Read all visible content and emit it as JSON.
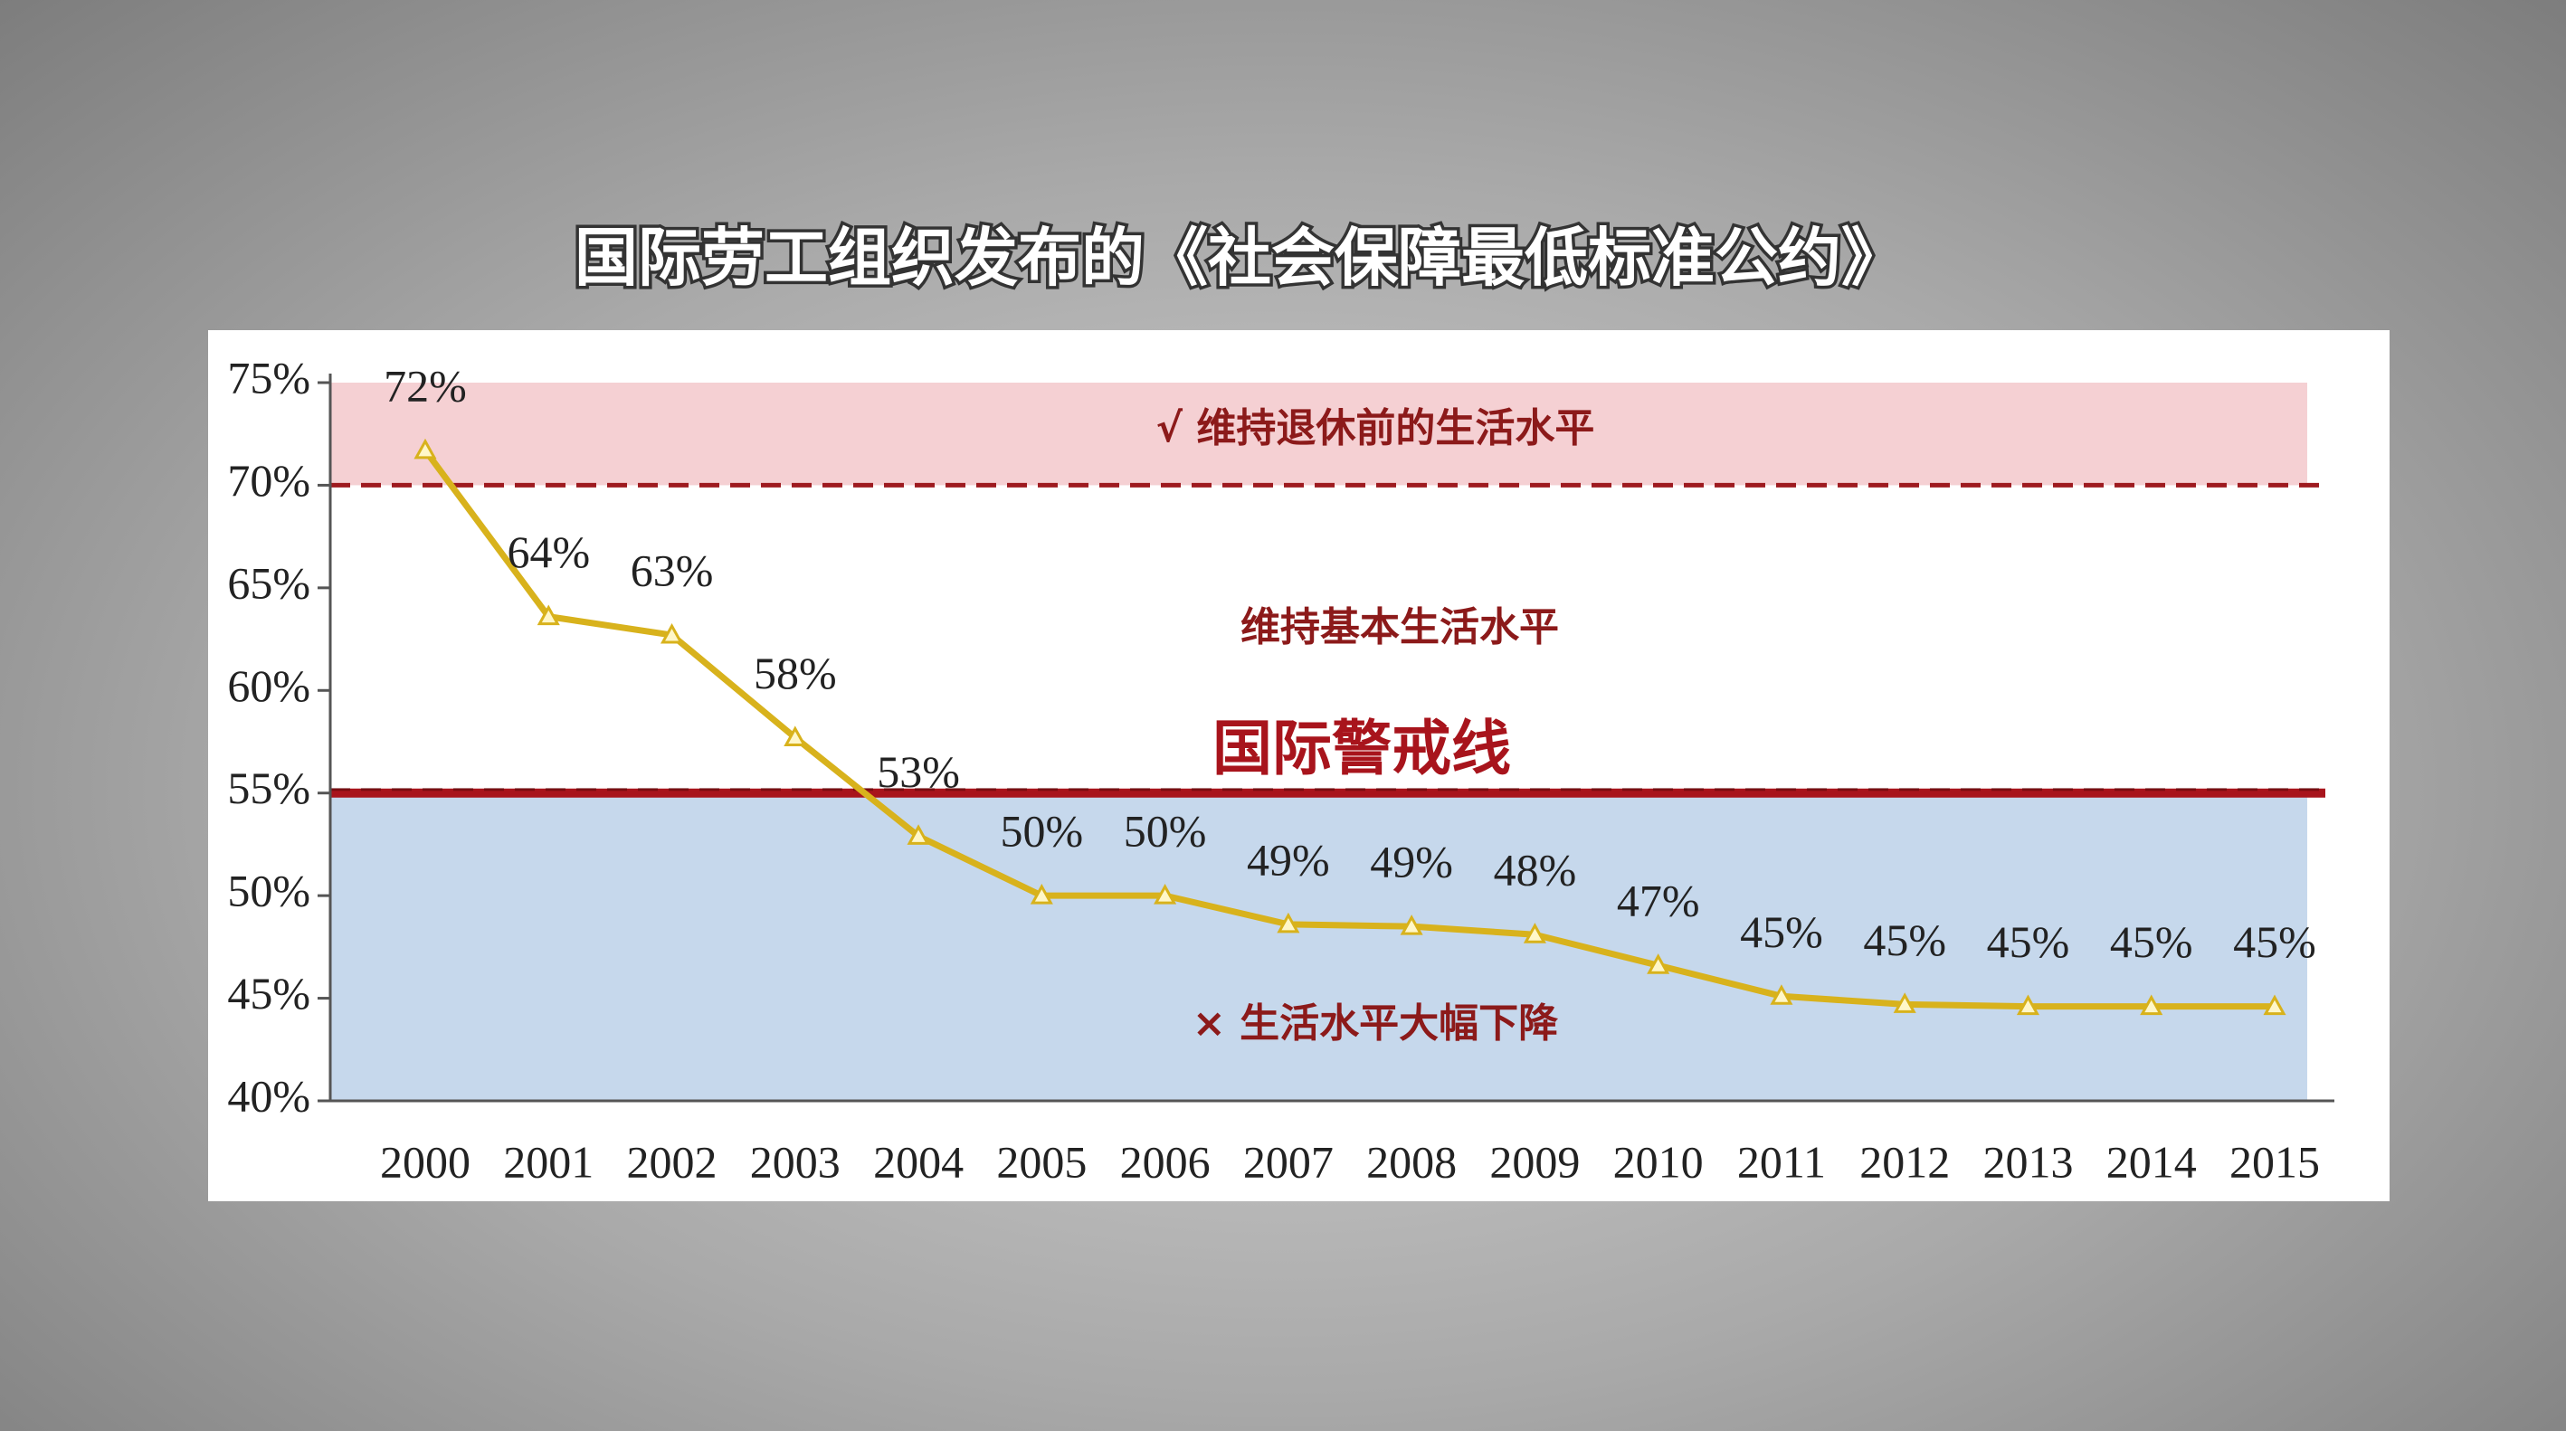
{
  "chart_data": {
    "type": "line",
    "title": "国际劳工组织发布的《社会保障最低标准公约》",
    "categories": [
      "2000",
      "2001",
      "2002",
      "2003",
      "2004",
      "2005",
      "2006",
      "2007",
      "2008",
      "2009",
      "2010",
      "2011",
      "2012",
      "2013",
      "2014",
      "2015"
    ],
    "values": [
      71.7,
      63.6,
      62.7,
      57.7,
      52.9,
      50.0,
      50.0,
      48.6,
      48.5,
      48.1,
      46.6,
      45.1,
      44.7,
      44.6,
      44.6,
      44.6
    ],
    "value_labels": [
      "72%",
      "64%",
      "63%",
      "58%",
      "53%",
      "50%",
      "50%",
      "49%",
      "49%",
      "48%",
      "47%",
      "45%",
      "45%",
      "45%",
      "45%",
      "45%"
    ],
    "color": "#d8b21c",
    "ylim": [
      40,
      75
    ],
    "yticks": [
      {
        "value": 40,
        "label": "40%"
      },
      {
        "value": 45,
        "label": "45%"
      },
      {
        "value": 50,
        "label": "50%"
      },
      {
        "value": 55,
        "label": "55%"
      },
      {
        "value": 60,
        "label": "60%"
      },
      {
        "value": 65,
        "label": "65%"
      },
      {
        "value": 70,
        "label": "70%"
      },
      {
        "value": 75,
        "label": "75%"
      }
    ],
    "bands": [
      {
        "from": 70,
        "to": 75,
        "color": "#f5d0d3",
        "label": "√  维持退休前的生活水平"
      },
      {
        "from": 40,
        "to": 55,
        "color": "#c6d8ec",
        "label": "×  生活水平大幅下降"
      }
    ],
    "reference_lines": [
      {
        "value": 70,
        "color": "#9e1a1f",
        "style": "dashed"
      },
      {
        "value": 55,
        "color": "#a8141c",
        "style": "thick",
        "label": "国际警戒线"
      }
    ],
    "annotation": "维持基本生活水平"
  }
}
